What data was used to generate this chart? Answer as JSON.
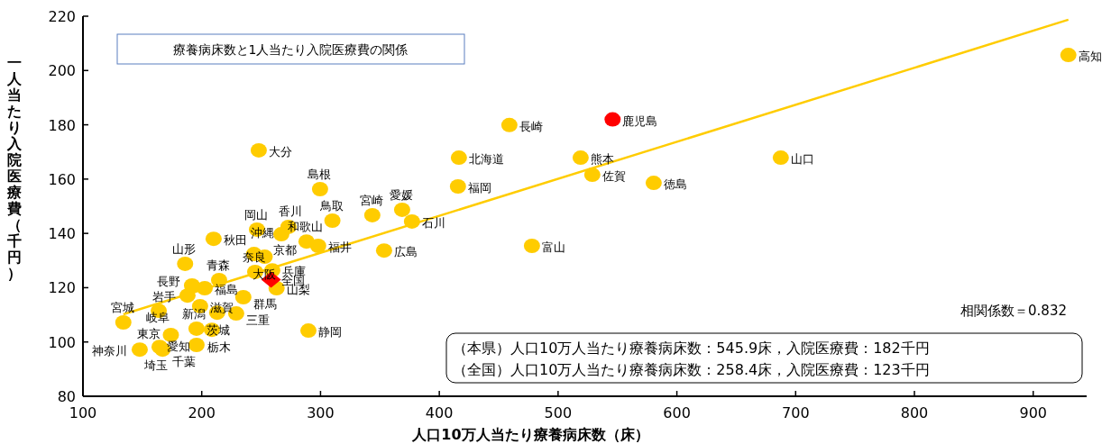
{
  "chart_data": {
    "type": "scatter",
    "xlabel": "人口10万人当たり療養病床数（床）",
    "ylabel": "一人当たり入院医療費（千円）",
    "xlim": [
      100,
      945
    ],
    "xticks": [
      100,
      200,
      300,
      400,
      500,
      600,
      700,
      800,
      900
    ],
    "ylim": [
      80,
      220
    ],
    "yticks": [
      80,
      100,
      120,
      140,
      160,
      180,
      200,
      220
    ],
    "grid": false,
    "tick_labels": "xy",
    "annotations": [
      "療養病床数と1人当たり入院医療費の関係",
      "相関係数＝0.832",
      "（本県）人口10万人当たり療養病床数：545.9床，入院医療費：182千円",
      "（全国）人口10万人当たり療養病床数：258.4床，入院医療費：123千円"
    ],
    "series": [
      {
        "type": "line",
        "color": "#ffcc00",
        "marker": "none",
        "x": [
          134,
          929.6
        ],
        "values": [
          110.2,
          218.7
        ]
      },
      {
        "type": "scatter",
        "color": "#ffcc00",
        "marker": "circle",
        "x": [
          416.5,
          214.6,
          188,
          134,
          210,
          186,
          202.5,
          195.6,
          208.5,
          235,
          164.5,
          167,
          174,
          147.8,
          213,
          478,
          377,
          298,
          263,
          191.8,
          163.8,
          289.8,
          195.6,
          229,
          198.6,
          244,
          253,
          259.4,
          245,
          288.2,
          310,
          299.6,
          246.5,
          353.5,
          687.5,
          580.5,
          273,
          368.7,
          929.6,
          415.7,
          528.8,
          459,
          519,
          248,
          343.6,
          267
        ],
        "values": [
          167.9,
          122.8,
          117.1,
          107.2,
          138,
          128.8,
          119.8,
          104.9,
          104.5,
          116.5,
          98.2,
          97.2,
          102.6,
          97.2,
          110.8,
          135.4,
          144.4,
          135.4,
          119.8,
          120.8,
          111.5,
          104.2,
          98.9,
          110.5,
          113.2,
          132.4,
          131.4,
          126.4,
          125.8,
          137,
          144.7,
          156.3,
          141.4,
          133.7,
          167.9,
          158.6,
          142.4,
          148.7,
          205.7,
          157.3,
          161.6,
          179.9,
          167.9,
          170.6,
          146.7,
          139.7
        ],
        "value_labels": [
          "北海道",
          "青森",
          "岩手",
          "宮城",
          "秋田",
          "山形",
          "福島",
          "茨城",
          "栃木",
          "群馬",
          "埼玉",
          "千葉",
          "東京",
          "神奈川",
          "新潟",
          "富山",
          "石川",
          "福井",
          "山梨",
          "長野",
          "岐阜",
          "静岡",
          "愛知",
          "三重",
          "滋賀",
          "京都",
          "大阪",
          "兵庫",
          "奈良",
          "和歌山",
          "鳥取",
          "島根",
          "岡山",
          "広島",
          "山口",
          "徳島",
          "香川",
          "愛媛",
          "高知",
          "福岡",
          "佐賀",
          "長崎",
          "熊本",
          "大分",
          "宮崎",
          "沖縄"
        ]
      },
      {
        "type": "scatter",
        "color": "#ff0000",
        "marker": "circle",
        "x": [
          545.9
        ],
        "values": [
          182
        ],
        "value_labels": [
          "鹿児島"
        ]
      },
      {
        "type": "scatter",
        "color": "#ff0000",
        "marker": "diamond",
        "x": [
          258.4
        ],
        "values": [
          123
        ],
        "value_labels": [
          "全国"
        ]
      }
    ]
  }
}
